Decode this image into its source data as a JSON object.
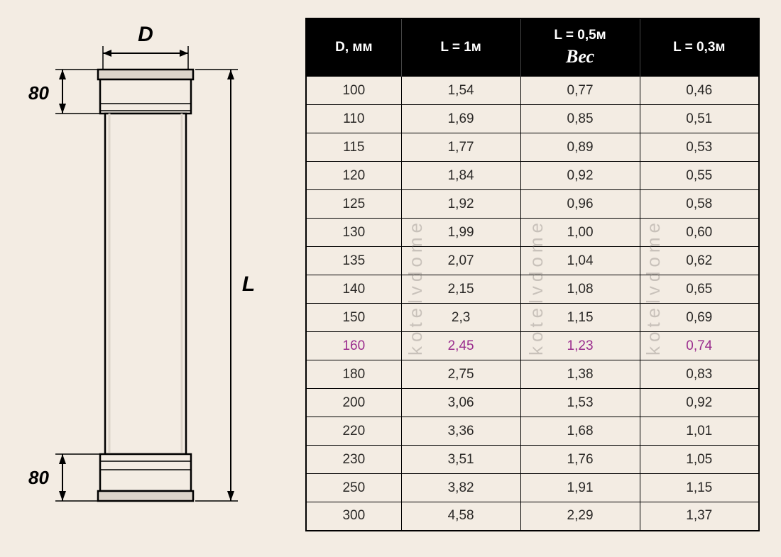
{
  "diagram": {
    "d_label": "D",
    "l_label": "L",
    "top_80": "80",
    "bottom_80": "80"
  },
  "table": {
    "header": {
      "col1": "D, мм",
      "col2": "L = 1м",
      "col3": "L = 0,5м",
      "col4": "L = 0,3м",
      "bec": "Вес"
    },
    "header_bg": "#000000",
    "header_fg": "#ffffff",
    "row_bg": "#f3ece3",
    "border_color": "#000000",
    "highlight_color": "#9b2d8e",
    "text_color": "#2a2826",
    "fontsize_body": 19,
    "fontsize_header": 19,
    "highlight_row_index": 9,
    "rows": [
      {
        "d": "100",
        "l1": "1,54",
        "l05": "0,77",
        "l03": "0,46"
      },
      {
        "d": "110",
        "l1": "1,69",
        "l05": "0,85",
        "l03": "0,51"
      },
      {
        "d": "115",
        "l1": "1,77",
        "l05": "0,89",
        "l03": "0,53"
      },
      {
        "d": "120",
        "l1": "1,84",
        "l05": "0,92",
        "l03": "0,55"
      },
      {
        "d": "125",
        "l1": "1,92",
        "l05": "0,96",
        "l03": "0,58"
      },
      {
        "d": "130",
        "l1": "1,99",
        "l05": "1,00",
        "l03": "0,60"
      },
      {
        "d": "135",
        "l1": "2,07",
        "l05": "1,04",
        "l03": "0,62"
      },
      {
        "d": "140",
        "l1": "2,15",
        "l05": "1,08",
        "l03": "0,65"
      },
      {
        "d": "150",
        "l1": "2,3",
        "l05": "1,15",
        "l03": "0,69"
      },
      {
        "d": "160",
        "l1": "2,45",
        "l05": "1,23",
        "l03": "0,74"
      },
      {
        "d": "180",
        "l1": "2,75",
        "l05": "1,38",
        "l03": "0,83"
      },
      {
        "d": "200",
        "l1": "3,06",
        "l05": "1,53",
        "l03": "0,92"
      },
      {
        "d": "220",
        "l1": "3,36",
        "l05": "1,68",
        "l03": "1,01"
      },
      {
        "d": "230",
        "l1": "3,51",
        "l05": "1,76",
        "l03": "1,05"
      },
      {
        "d": "250",
        "l1": "3,82",
        "l05": "1,91",
        "l03": "1,15"
      },
      {
        "d": "300",
        "l1": "4,58",
        "l05": "2,29",
        "l03": "1,37"
      }
    ]
  },
  "watermark": "kotelvdome",
  "page_bg": "#f3ece3",
  "pipe": {
    "body_stroke": "#000000",
    "body_fill": "#f3ece3",
    "shade_fill": "#dcd4ca"
  }
}
